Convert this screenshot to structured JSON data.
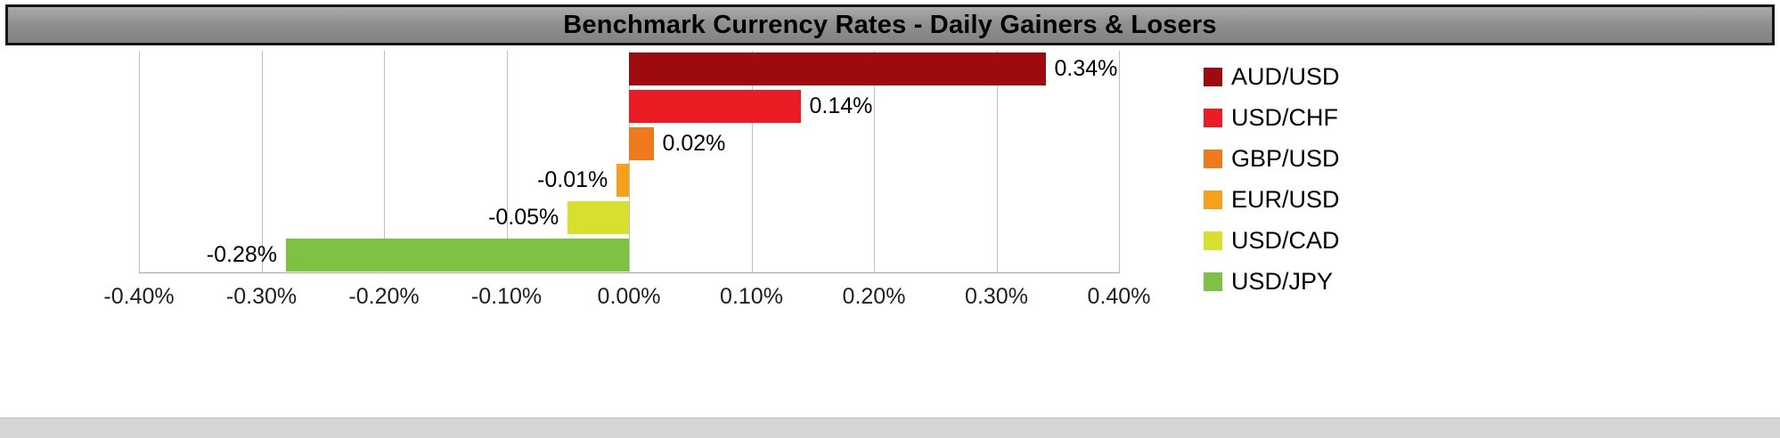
{
  "title": "Benchmark Currency Rates - Daily Gainers & Losers",
  "chart_data": {
    "type": "bar",
    "orientation": "horizontal",
    "title": "Benchmark Currency Rates - Daily Gainers & Losers",
    "categories": [
      "AUD/USD",
      "USD/CHF",
      "GBP/USD",
      "EUR/USD",
      "USD/CAD",
      "USD/JPY"
    ],
    "values": [
      0.34,
      0.14,
      0.02,
      -0.01,
      -0.05,
      -0.28
    ],
    "value_labels": [
      "0.34%",
      "0.14%",
      "0.02%",
      "-0.01%",
      "-0.05%",
      "-0.28%"
    ],
    "colors": [
      "#9e0b0f",
      "#ec1c24",
      "#ef7a1d",
      "#f7a11a",
      "#d7e02c",
      "#7dc242"
    ],
    "xlim": [
      -0.4,
      0.4
    ],
    "x_tick_labels": [
      "-0.40%",
      "-0.30%",
      "-0.20%",
      "-0.10%",
      "0.00%",
      "0.10%",
      "0.20%",
      "0.30%",
      "0.40%"
    ],
    "grid": true,
    "legend_position": "right"
  }
}
